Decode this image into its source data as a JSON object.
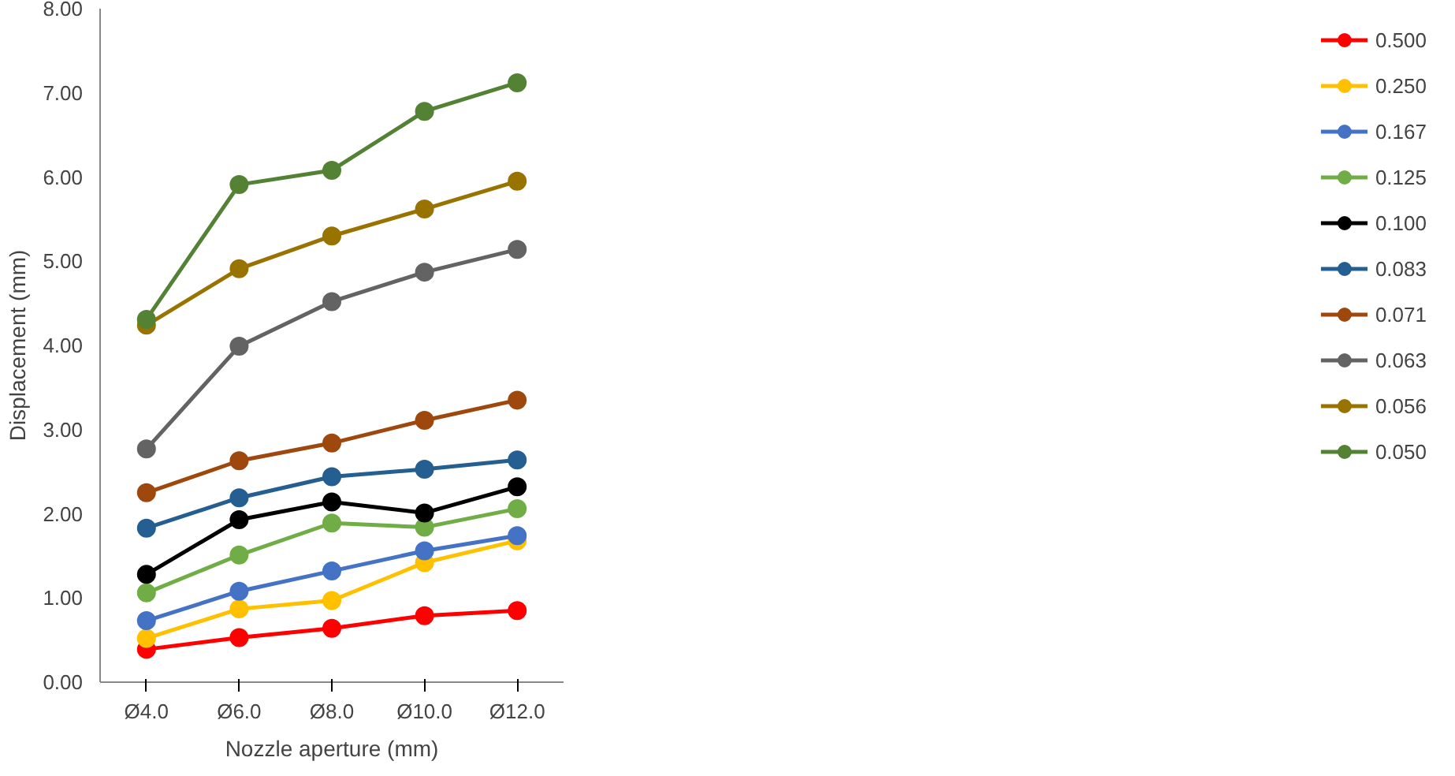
{
  "chart_data": {
    "type": "line",
    "xlabel": "Nozzle aperture (mm)",
    "ylabel": "Displacement (mm)",
    "categories": [
      "Ø4.0",
      "Ø6.0",
      "Ø8.0",
      "Ø10.0",
      "Ø12.0"
    ],
    "ylim": [
      0,
      8
    ],
    "yticks": [
      {
        "value": 0,
        "label": "0.00"
      },
      {
        "value": 1,
        "label": "1.00"
      },
      {
        "value": 2,
        "label": "2.00"
      },
      {
        "value": 3,
        "label": "3.00"
      },
      {
        "value": 4,
        "label": "4.00"
      },
      {
        "value": 5,
        "label": "5.00"
      },
      {
        "value": 6,
        "label": "6.00"
      },
      {
        "value": 7,
        "label": "7.00"
      },
      {
        "value": 8,
        "label": "8.00"
      }
    ],
    "grid": false,
    "legend": "right",
    "marker": "circle",
    "line_style": "solid",
    "series": [
      {
        "name": "0.500",
        "color": "#ff0000",
        "values": [
          0.39,
          0.53,
          0.64,
          0.79,
          0.85
        ]
      },
      {
        "name": "0.250",
        "color": "#ffc000",
        "values": [
          0.52,
          0.87,
          0.97,
          1.42,
          1.68
        ]
      },
      {
        "name": "0.167",
        "color": "#4472c4",
        "values": [
          0.73,
          1.08,
          1.32,
          1.56,
          1.74
        ]
      },
      {
        "name": "0.125",
        "color": "#70ad47",
        "values": [
          1.06,
          1.51,
          1.89,
          1.84,
          2.06
        ]
      },
      {
        "name": "0.100",
        "color": "#000000",
        "values": [
          1.28,
          1.93,
          2.14,
          2.01,
          2.32
        ]
      },
      {
        "name": "0.083",
        "color": "#255e91",
        "values": [
          1.83,
          2.19,
          2.44,
          2.53,
          2.64
        ]
      },
      {
        "name": "0.071",
        "color": "#9e480e",
        "values": [
          2.25,
          2.63,
          2.84,
          3.11,
          3.35
        ]
      },
      {
        "name": "0.063",
        "color": "#636363",
        "values": [
          2.77,
          3.99,
          4.52,
          4.87,
          5.14
        ]
      },
      {
        "name": "0.056",
        "color": "#997300",
        "values": [
          4.24,
          4.91,
          5.3,
          5.62,
          5.95
        ]
      },
      {
        "name": "0.050",
        "color": "#548235",
        "values": [
          4.31,
          5.91,
          6.08,
          6.78,
          7.12
        ]
      }
    ]
  }
}
